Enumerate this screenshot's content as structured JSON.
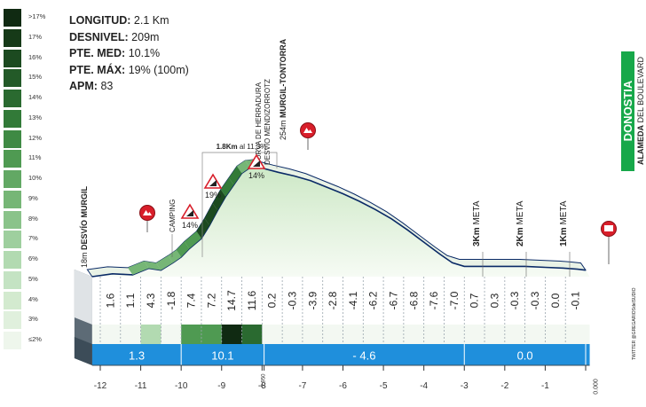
{
  "stats": [
    {
      "label": "LONGITUD:",
      "value": "2.1 Km"
    },
    {
      "label": "DESNIVEL:",
      "value": "209m"
    },
    {
      "label": "PTE. MED:",
      "value": "10.1%"
    },
    {
      "label": "PTE. MÁX:",
      "value": "19% (100m)"
    },
    {
      "label": "APM:",
      "value": "83"
    }
  ],
  "colors": {
    "blue_bar": "#1f8fdc",
    "profile_fill_top": "#d9efd2",
    "profile_fill_bottom": "#f4faf2",
    "side_dark": "#3c4c58",
    "outline": "#0a2a66",
    "marker_red": "#d81e2a",
    "finish_green": "#17a84a"
  },
  "legend": [
    {
      "label": ">17%",
      "color": "#102a12"
    },
    {
      "label": "17%",
      "color": "#163a18"
    },
    {
      "label": "16%",
      "color": "#1c4a20"
    },
    {
      "label": "15%",
      "color": "#235a28"
    },
    {
      "label": "14%",
      "color": "#2a6a30"
    },
    {
      "label": "13%",
      "color": "#327a38"
    },
    {
      "label": "12%",
      "color": "#3f8a44"
    },
    {
      "label": "11%",
      "color": "#4f9a52"
    },
    {
      "label": "10%",
      "color": "#62a864"
    },
    {
      "label": "9%",
      "color": "#76b676"
    },
    {
      "label": "8%",
      "color": "#8ac38a"
    },
    {
      "label": "7%",
      "color": "#9ecf9e"
    },
    {
      "label": "6%",
      "color": "#b2dab1"
    },
    {
      "label": "5%",
      "color": "#c4e3c3"
    },
    {
      "label": "4%",
      "color": "#d3eacf"
    },
    {
      "label": "3%",
      "color": "#e0f0dd"
    },
    {
      "label": "≤2%",
      "color": "#eef6ec"
    }
  ],
  "finish": {
    "name": "DONOSTIA",
    "street_bold": "ALAMEDA",
    "street_rest": " DEL BOULEVARD"
  },
  "annotations": {
    "start": {
      "alt": "18m",
      "name": "DESVÍO MURGIL"
    },
    "camping": "CAMPING",
    "curva_1": "CURVA DE HERRADURA",
    "curva_2": "DESVÍO MENDIZORROTZ",
    "summit": {
      "alt": "254m",
      "name": "MURGIL-TONTORRA"
    },
    "bracket": {
      "bold": "1.8Km",
      "rest": " al 11.3%"
    },
    "warn_1": "14%",
    "warn_2": "19%",
    "warn_3": "14%",
    "meta_3": {
      "bold": "3Km",
      "rest": " META"
    },
    "meta_2": {
      "bold": "2Km",
      "rest": " META"
    },
    "meta_1": {
      "bold": "1Km",
      "rest": " META"
    },
    "credit": "TWITTER @GREGARIOSdelSUDIO"
  },
  "chart_data": {
    "type": "area",
    "xlabel": "",
    "ylabel": "",
    "x_ticks": [
      "-12",
      "-11",
      "-10",
      "-9",
      "-8",
      "-7",
      "-6",
      "-5",
      "-4",
      "-3",
      "-2",
      "-1",
      "0.000"
    ],
    "x_extra_tick": "-7.950",
    "xlim": [
      -12.2,
      0.1
    ],
    "ylim": [
      18,
      254
    ],
    "profile": {
      "x": [
        -12.2,
        -11.7,
        -11.2,
        -10.8,
        -10.5,
        -10.2,
        -10.0,
        -9.8,
        -9.5,
        -9.3,
        -9.1,
        -8.9,
        -8.7,
        -8.5,
        -8.3,
        -8.1,
        -7.95,
        -7.6,
        -7.2,
        -6.8,
        -6.4,
        -6.0,
        -5.6,
        -5.2,
        -4.8,
        -4.4,
        -4.0,
        -3.6,
        -3.3,
        -3.0,
        -2.6,
        -2.0,
        -1.5,
        -1.0,
        -0.5,
        -0.2,
        0.0
      ],
      "elevation": [
        18,
        24,
        22,
        36,
        32,
        48,
        60,
        78,
        100,
        128,
        160,
        190,
        215,
        240,
        252,
        254,
        250,
        242,
        234,
        224,
        210,
        196,
        180,
        162,
        142,
        118,
        92,
        66,
        48,
        40,
        40,
        40,
        40,
        38,
        36,
        34,
        32
      ]
    },
    "segment_gradients": [
      {
        "km": "-12",
        "gradient": "1.6"
      },
      {
        "km": "-11.5",
        "gradient": "1.1"
      },
      {
        "km": "-11",
        "gradient": "4.3"
      },
      {
        "km": "-10.5",
        "gradient": "-1.8"
      },
      {
        "km": "-10",
        "gradient": "7.4"
      },
      {
        "km": "-9.5",
        "gradient": "7.2"
      },
      {
        "km": "-9",
        "gradient": "14.7"
      },
      {
        "km": "-8.5",
        "gradient": "11.6"
      },
      {
        "km": "-8",
        "gradient": "0.2"
      },
      {
        "km": "-7.5",
        "gradient": "-0.3"
      },
      {
        "km": "-7",
        "gradient": "-3.9"
      },
      {
        "km": "-6.5",
        "gradient": "-2.8"
      },
      {
        "km": "-6",
        "gradient": "-4.1"
      },
      {
        "km": "-5.5",
        "gradient": "-6.2"
      },
      {
        "km": "-5",
        "gradient": "-6.7"
      },
      {
        "km": "-4.5",
        "gradient": "-6.8"
      },
      {
        "km": "-4",
        "gradient": "-7.6"
      },
      {
        "km": "-3.5",
        "gradient": "-7.0"
      },
      {
        "km": "-3",
        "gradient": "0.7"
      },
      {
        "km": "-2.5",
        "gradient": "0.3"
      },
      {
        "km": "-2",
        "gradient": "-0.3"
      },
      {
        "km": "-1.5",
        "gradient": "-0.3"
      },
      {
        "km": "-1",
        "gradient": "0.0"
      },
      {
        "km": "-0.5",
        "gradient": "-0.1"
      }
    ],
    "sector_averages": [
      {
        "from": -12.2,
        "to": -10.0,
        "value": "1.3"
      },
      {
        "from": -10.0,
        "to": -7.95,
        "value": "10.1"
      },
      {
        "from": -7.95,
        "to": -3.0,
        "value": "- 4.6"
      },
      {
        "from": -3.0,
        "to": 0.0,
        "value": "0.0"
      }
    ]
  }
}
